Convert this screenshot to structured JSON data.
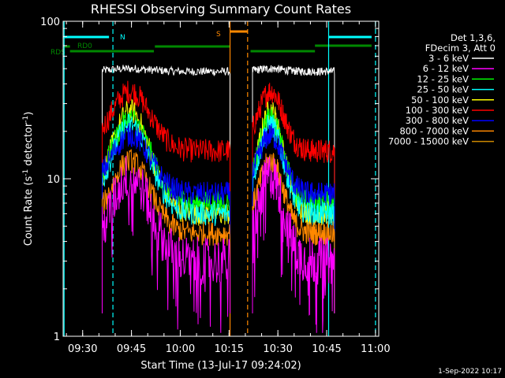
{
  "chart_data": {
    "type": "line",
    "title": "RHESSI Observing Summary Count Rates",
    "xlabel": "Start Time (13-Jul-17 09:24:02)",
    "ylabel_main": "Count Rate (s",
    "ylabel_sup1": "-1",
    "ylabel_mid": " detector",
    "ylabel_sup2": "-1",
    "ylabel_end": ")",
    "yscale": "log",
    "ylim": [
      1,
      100
    ],
    "xlim_minutes": [
      9.4,
      10.9833
    ],
    "x_ticks": [
      {
        "label": "09:30",
        "hour": 9.5
      },
      {
        "label": "09:45",
        "hour": 9.75
      },
      {
        "label": "10:00",
        "hour": 10.0
      },
      {
        "label": "10:15",
        "hour": 10.25
      },
      {
        "label": "10:30",
        "hour": 10.5
      },
      {
        "label": "10:45",
        "hour": 10.75
      },
      {
        "label": "11:00",
        "hour": 11.0
      }
    ],
    "y_ticks": [
      {
        "label": "1",
        "value": 1
      },
      {
        "label": "10",
        "value": 10
      },
      {
        "label": "100",
        "value": 100
      }
    ],
    "legend_header": [
      "Det 1,3,6,",
      "FDecim 3, Att 0"
    ],
    "series": [
      {
        "name": "3 - 6 keV",
        "color": "#ffffff",
        "base": 50,
        "peak": 50,
        "dip": 48
      },
      {
        "name": "6 - 12 keV",
        "color": "#ff00ff",
        "base": 3.5,
        "peak": 10.5,
        "dip": 3.0
      },
      {
        "name": "12 - 25 keV",
        "color": "#00ff00",
        "base": 5,
        "peak": 24,
        "dip": 7
      },
      {
        "name": "25 - 50 keV",
        "color": "#00ffff",
        "base": 4.5,
        "peak": 22,
        "dip": 6
      },
      {
        "name": "50 - 100 keV",
        "color": "#ffff00",
        "base": 4.5,
        "peak": 27,
        "dip": 6
      },
      {
        "name": "100 - 300 keV",
        "color": "#ff0000",
        "base": 15,
        "peak": 36,
        "dip": 15
      },
      {
        "name": "300 - 800 keV",
        "color": "#0000ff",
        "base": 8,
        "peak": 19,
        "dip": 8
      },
      {
        "name": "800 - 7000 keV",
        "color": "#ff8800",
        "base": 5,
        "peak": 13,
        "dip": 4.5
      },
      {
        "name": "7000 - 15000 keV",
        "color": "#cc8800",
        "base": 1,
        "peak": 1,
        "dip": 1
      }
    ],
    "segments": [
      {
        "start": 9.6,
        "end": 10.255
      },
      {
        "start": 10.37,
        "end": 10.79
      }
    ],
    "flags": [
      {
        "label": "N",
        "color": "#00ffff",
        "ranges": [
          [
            9.4,
            9.635
          ],
          [
            10.76,
            10.98
          ]
        ]
      },
      {
        "label": "S",
        "color": "#ff8800",
        "ranges": [
          [
            10.255,
            10.345
          ]
        ]
      },
      {
        "label": "RD0",
        "color": "#008800",
        "ranges": [
          [
            9.4,
            9.435
          ],
          [
            9.87,
            10.255
          ]
        ]
      },
      {
        "label": "RDS",
        "color": "#008800",
        "ranges": [
          [
            9.435,
            9.865
          ],
          [
            10.36,
            10.69
          ]
        ]
      },
      {
        "label": "",
        "color": "#008800",
        "ranges": [
          [
            10.69,
            10.98
          ]
        ]
      }
    ],
    "vlines": [
      {
        "hour": 9.405,
        "color": "#00ffff",
        "style": "solid"
      },
      {
        "hour": 9.655,
        "color": "#00ffff",
        "style": "dashed"
      },
      {
        "hour": 10.255,
        "color": "#ff8800",
        "style": "solid"
      },
      {
        "hour": 10.345,
        "color": "#ff8800",
        "style": "dashed"
      },
      {
        "hour": 10.76,
        "color": "#00ffff",
        "style": "solid"
      },
      {
        "hour": 11.0,
        "color": "#00ffff",
        "style": "dashed"
      }
    ],
    "footer_date": "1-Sep-2022 10:17"
  }
}
